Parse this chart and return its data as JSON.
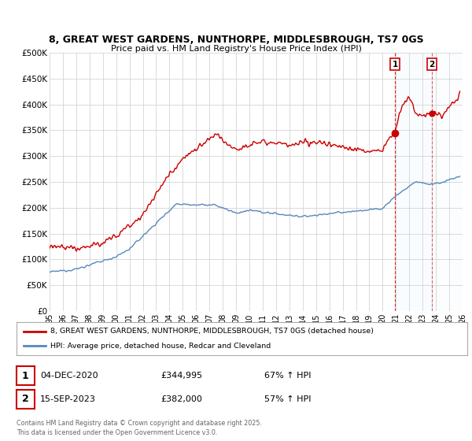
{
  "title_line1": "8, GREAT WEST GARDENS, NUNTHORPE, MIDDLESBROUGH, TS7 0GS",
  "title_line2": "Price paid vs. HM Land Registry's House Price Index (HPI)",
  "background_color": "#ffffff",
  "plot_background": "#ffffff",
  "grid_color": "#cccccc",
  "red_color": "#cc0000",
  "blue_color": "#5588bb",
  "shade_color": "#ddeeff",
  "marker1_date_x": 2020.92,
  "marker2_date_x": 2023.71,
  "marker1_price": 344995,
  "marker2_price": 382000,
  "legend_line1": "8, GREAT WEST GARDENS, NUNTHORPE, MIDDLESBROUGH, TS7 0GS (detached house)",
  "legend_line2": "HPI: Average price, detached house, Redcar and Cleveland",
  "table_row1": [
    "1",
    "04-DEC-2020",
    "£344,995",
    "67% ↑ HPI"
  ],
  "table_row2": [
    "2",
    "15-SEP-2023",
    "£382,000",
    "57% ↑ HPI"
  ],
  "footer": "Contains HM Land Registry data © Crown copyright and database right 2025.\nThis data is licensed under the Open Government Licence v3.0.",
  "xmin": 1995,
  "xmax": 2026,
  "ymin": 0,
  "ymax": 500000
}
